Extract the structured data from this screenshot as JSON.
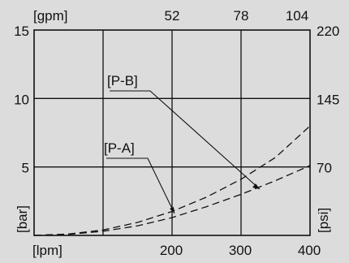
{
  "chart_data": {
    "type": "line",
    "x_unit_label": "[lpm]",
    "x_ticks": [
      200,
      300,
      400
    ],
    "x_top_unit_label": "[gpm]",
    "x_top_ticks": [
      52,
      78,
      104
    ],
    "y_unit_label": "[bar]",
    "y_ticks": [
      5,
      10,
      15
    ],
    "y_right_unit_label": "[psi]",
    "y_right_ticks": [
      70,
      145,
      220
    ],
    "xlim": [
      0,
      400
    ],
    "ylim": [
      0,
      15
    ],
    "grid": true,
    "series": [
      {
        "name": "[P-A]",
        "x": [
          0,
          50,
          100,
          150,
          200,
          250,
          300,
          350,
          400
        ],
        "y": [
          0,
          0.08,
          0.3,
          0.7,
          1.3,
          2.1,
          3.0,
          4.0,
          5.1
        ]
      },
      {
        "name": "[P-B]",
        "x": [
          0,
          50,
          100,
          150,
          200,
          250,
          300,
          350,
          400
        ],
        "y": [
          0,
          0.1,
          0.4,
          0.95,
          1.75,
          2.8,
          4.1,
          5.7,
          8.0
        ]
      }
    ]
  }
}
